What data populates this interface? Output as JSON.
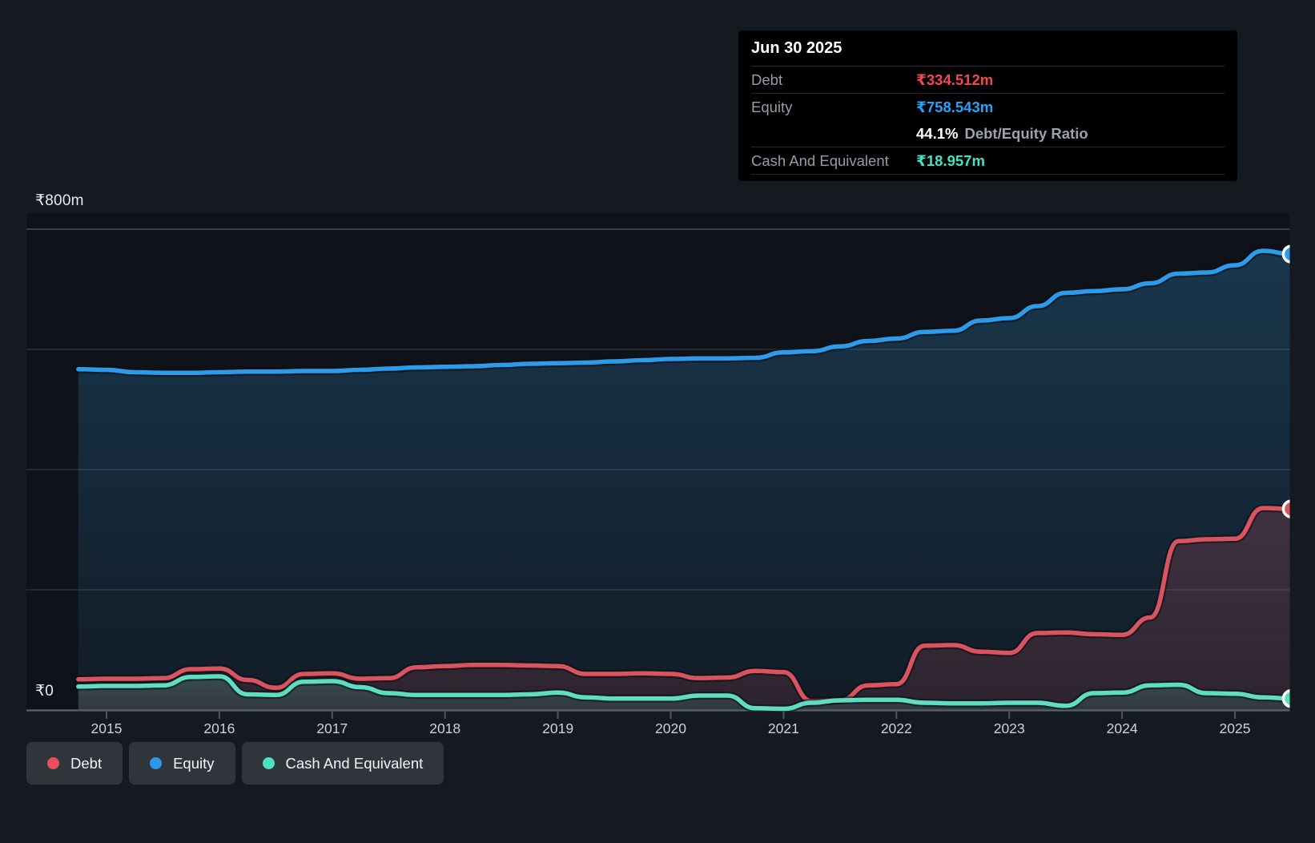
{
  "page": {
    "background": "#151a21",
    "plot_background": "#0f1319"
  },
  "y_axis": {
    "top_label": "₹800m",
    "zero_label": "₹0"
  },
  "x_axis": {
    "labels": [
      "2015",
      "2016",
      "2017",
      "2018",
      "2019",
      "2020",
      "2021",
      "2022",
      "2023",
      "2024",
      "2025"
    ]
  },
  "tooltip": {
    "title": "Jun 30 2025",
    "debt_label": "Debt",
    "debt_value": "₹334.512m",
    "equity_label": "Equity",
    "equity_value": "₹758.543m",
    "ratio_value": "44.1%",
    "ratio_label": "Debt/Equity Ratio",
    "cash_label": "Cash And Equivalent",
    "cash_value": "₹18.957m"
  },
  "legend": {
    "items": [
      {
        "label": "Debt",
        "color": "#e8505b"
      },
      {
        "label": "Equity",
        "color": "#2b98ec"
      },
      {
        "label": "Cash And Equivalent",
        "color": "#4fdfc2"
      }
    ]
  },
  "chart_data": {
    "type": "area",
    "unit": "₹m",
    "xlim": [
      2014.75,
      2025.5
    ],
    "ylim": [
      0,
      800
    ],
    "gridline_values": [
      0,
      200,
      400,
      600,
      800
    ],
    "grid": true,
    "legend_position": "bottom-left",
    "x": [
      2014.75,
      2015,
      2015.25,
      2015.5,
      2015.75,
      2016,
      2016.25,
      2016.5,
      2016.75,
      2017,
      2017.25,
      2017.5,
      2017.75,
      2018,
      2018.25,
      2018.5,
      2018.75,
      2019,
      2019.25,
      2019.5,
      2019.75,
      2020,
      2020.25,
      2020.5,
      2020.75,
      2021,
      2021.25,
      2021.5,
      2021.75,
      2022,
      2022.25,
      2022.5,
      2022.75,
      2023,
      2023.25,
      2023.5,
      2023.75,
      2024,
      2024.25,
      2024.5,
      2024.75,
      2025,
      2025.25,
      2025.5
    ],
    "series": [
      {
        "name": "Equity",
        "color": "#2e9bea",
        "fill_color": "#2f7fb8",
        "values": [
          567,
          566,
          562,
          561,
          561,
          562,
          563,
          563,
          564,
          564,
          566,
          568,
          570,
          571,
          572,
          574,
          576,
          577,
          578,
          580,
          582,
          584,
          585,
          585,
          586,
          595,
          597,
          605,
          614,
          618,
          629,
          631,
          648,
          652,
          672,
          694,
          697,
          700,
          710,
          726,
          728,
          740,
          764,
          758.543
        ],
        "end_value_label": "₹758.543m"
      },
      {
        "name": "Debt",
        "color": "#d9545e",
        "fill_color": "#c4505f",
        "values": [
          51,
          52,
          52,
          53,
          68,
          69,
          50,
          37,
          60,
          61,
          52,
          53,
          71,
          73,
          75,
          75,
          74,
          73,
          60,
          60,
          61,
          60,
          53,
          54,
          65,
          63,
          15,
          16,
          41,
          43,
          107,
          108,
          97,
          95,
          128,
          129,
          126,
          125,
          154,
          281,
          284,
          285,
          336,
          334.512
        ],
        "end_value_label": "₹334.512m"
      },
      {
        "name": "Cash And Equivalent",
        "color": "#5fddc1",
        "fill_color": "#57d6bb",
        "values": [
          39,
          40,
          40,
          41,
          55,
          56,
          26,
          25,
          47,
          48,
          38,
          28,
          25,
          25,
          25,
          25,
          26,
          29,
          21,
          19,
          19,
          19,
          24,
          24,
          3,
          2,
          12,
          16,
          17,
          17,
          12,
          11,
          11,
          12,
          12,
          7,
          28,
          29,
          41,
          42,
          28,
          27,
          21,
          18.957
        ],
        "end_value_label": "₹18.957m"
      }
    ]
  }
}
